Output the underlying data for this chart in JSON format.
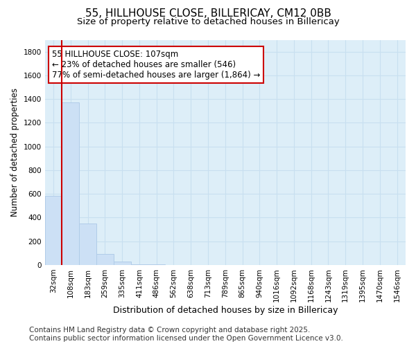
{
  "title": "55, HILLHOUSE CLOSE, BILLERICAY, CM12 0BB",
  "subtitle": "Size of property relative to detached houses in Billericay",
  "xlabel": "Distribution of detached houses by size in Billericay",
  "ylabel": "Number of detached properties",
  "categories": [
    "32sqm",
    "108sqm",
    "183sqm",
    "259sqm",
    "335sqm",
    "411sqm",
    "486sqm",
    "562sqm",
    "638sqm",
    "713sqm",
    "789sqm",
    "865sqm",
    "940sqm",
    "1016sqm",
    "1092sqm",
    "1168sqm",
    "1243sqm",
    "1319sqm",
    "1395sqm",
    "1470sqm",
    "1546sqm"
  ],
  "values": [
    585,
    1370,
    350,
    95,
    27,
    5,
    2,
    1,
    0,
    0,
    0,
    0,
    0,
    0,
    0,
    0,
    0,
    0,
    0,
    0,
    0
  ],
  "bar_color": "#cce0f5",
  "bar_edge_color": "#b0cce8",
  "red_line_index": 1,
  "annotation_line1": "55 HILLHOUSE CLOSE: 107sqm",
  "annotation_line2": "← 23% of detached houses are smaller (546)",
  "annotation_line3": "77% of semi-detached houses are larger (1,864) →",
  "annotation_box_color": "#ffffff",
  "annotation_box_edge_color": "#cc0000",
  "ylim": [
    0,
    1900
  ],
  "yticks": [
    0,
    200,
    400,
    600,
    800,
    1000,
    1200,
    1400,
    1600,
    1800
  ],
  "grid_color": "#c8dff0",
  "background_color": "#ddeef8",
  "footer_line1": "Contains HM Land Registry data © Crown copyright and database right 2025.",
  "footer_line2": "Contains public sector information licensed under the Open Government Licence v3.0.",
  "title_fontsize": 11,
  "subtitle_fontsize": 9.5,
  "annotation_fontsize": 8.5,
  "ylabel_fontsize": 8.5,
  "xlabel_fontsize": 9,
  "footer_fontsize": 7.5,
  "tick_fontsize": 7.5
}
